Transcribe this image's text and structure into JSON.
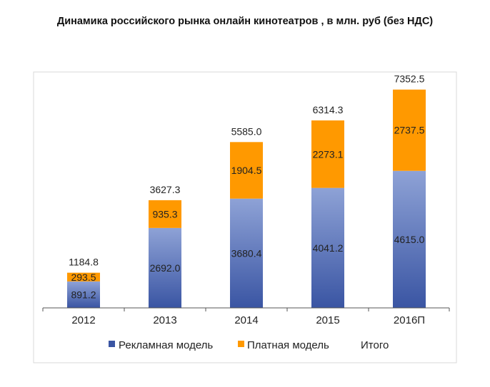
{
  "title": "Динамика российского рынка онлайн кинотеатров , в млн. руб (без НДС)",
  "colors": {
    "advertising_top": "#8ea2d6",
    "advertising_bottom": "#3a55a3",
    "paid": "#ff9900",
    "frame": "#d9d9d9",
    "axis": "#555555"
  },
  "chart_data": {
    "type": "bar",
    "stacked": true,
    "title": "Динамика российского рынка онлайн кинотеатров , в млн. руб (без НДС)",
    "xlabel": "",
    "ylabel": "",
    "categories": [
      "2012",
      "2013",
      "2014",
      "2015",
      "2016П"
    ],
    "series": [
      {
        "name": "Рекламная модель",
        "values": [
          891.2,
          2692.0,
          3680.4,
          4041.2,
          4615.0
        ],
        "labels": [
          "891.2",
          "2692.0",
          "3680.4",
          "4041.2",
          "4615.0"
        ]
      },
      {
        "name": "Платная модель",
        "values": [
          293.5,
          935.3,
          1904.5,
          2273.1,
          2737.5
        ],
        "labels": [
          "293.5",
          "935.3",
          "1904.5",
          "2273.1",
          "2737.5"
        ]
      }
    ],
    "totals": {
      "name": "Итого",
      "values": [
        1184.8,
        3627.3,
        5585.0,
        6314.3,
        7352.5
      ],
      "labels": [
        "1184.8",
        "3627.3",
        "5585.0",
        "6314.3",
        "7352.5"
      ]
    },
    "ylim": [
      0,
      8000
    ],
    "legend": "bottom",
    "grid": false
  }
}
